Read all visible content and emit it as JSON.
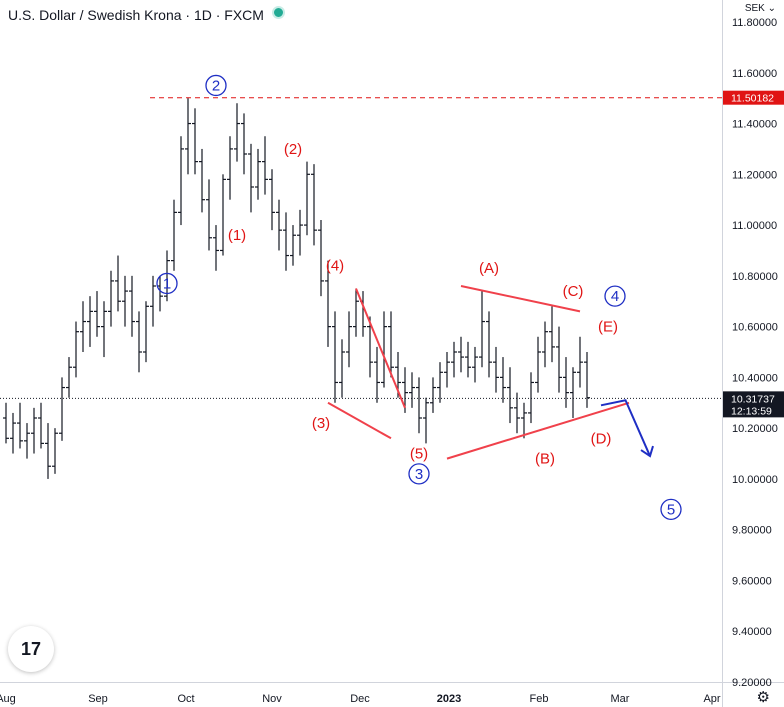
{
  "header": {
    "title": "U.S. Dollar / Swedish Krona · 1D · FXCM",
    "currency": "SEK ⌄"
  },
  "logo": {
    "text": "17"
  },
  "chart_data": {
    "type": "ohlc",
    "symbol": "USDSEK",
    "timeframe": "1D",
    "ylim": [
      9.2,
      11.8
    ],
    "y_ticks": [
      "11.80000",
      "11.60000",
      "11.40000",
      "11.20000",
      "11.00000",
      "10.80000",
      "10.60000",
      "10.40000",
      "10.20000",
      "10.00000",
      "9.80000",
      "9.60000",
      "9.40000",
      "9.20000"
    ],
    "x_ticks": [
      "Aug",
      "Sep",
      "Oct",
      "Nov",
      "Dec",
      "2023",
      "Feb",
      "Mar",
      "Apr"
    ],
    "last_price": "10.31737",
    "countdown": "12:13:59",
    "resistance_level": "11.50182",
    "bars": [
      [
        10.24,
        10.3,
        10.14,
        10.16
      ],
      [
        10.16,
        10.26,
        10.1,
        10.22
      ],
      [
        10.22,
        10.3,
        10.12,
        10.15
      ],
      [
        10.15,
        10.22,
        10.08,
        10.18
      ],
      [
        10.18,
        10.28,
        10.1,
        10.24
      ],
      [
        10.24,
        10.3,
        10.12,
        10.14
      ],
      [
        10.14,
        10.22,
        10.0,
        10.05
      ],
      [
        10.05,
        10.2,
        10.02,
        10.18
      ],
      [
        10.18,
        10.4,
        10.15,
        10.36
      ],
      [
        10.36,
        10.48,
        10.32,
        10.44
      ],
      [
        10.44,
        10.62,
        10.4,
        10.58
      ],
      [
        10.58,
        10.7,
        10.5,
        10.62
      ],
      [
        10.62,
        10.72,
        10.52,
        10.66
      ],
      [
        10.66,
        10.74,
        10.56,
        10.6
      ],
      [
        10.6,
        10.7,
        10.48,
        10.66
      ],
      [
        10.66,
        10.82,
        10.6,
        10.78
      ],
      [
        10.78,
        10.88,
        10.66,
        10.7
      ],
      [
        10.7,
        10.8,
        10.6,
        10.74
      ],
      [
        10.74,
        10.8,
        10.56,
        10.62
      ],
      [
        10.62,
        10.66,
        10.42,
        10.5
      ],
      [
        10.5,
        10.7,
        10.46,
        10.68
      ],
      [
        10.68,
        10.8,
        10.6,
        10.76
      ],
      [
        10.76,
        10.8,
        10.66,
        10.72
      ],
      [
        10.72,
        10.9,
        10.7,
        10.86
      ],
      [
        10.86,
        11.1,
        10.82,
        11.05
      ],
      [
        11.05,
        11.35,
        11.0,
        11.3
      ],
      [
        11.3,
        11.5,
        11.2,
        11.4
      ],
      [
        11.4,
        11.46,
        11.2,
        11.25
      ],
      [
        11.25,
        11.3,
        11.05,
        11.1
      ],
      [
        11.1,
        11.18,
        10.9,
        10.95
      ],
      [
        10.95,
        11.0,
        10.82,
        10.9
      ],
      [
        10.9,
        11.2,
        10.88,
        11.18
      ],
      [
        11.18,
        11.35,
        11.1,
        11.3
      ],
      [
        11.3,
        11.48,
        11.25,
        11.4
      ],
      [
        11.4,
        11.44,
        11.2,
        11.28
      ],
      [
        11.28,
        11.32,
        11.05,
        11.15
      ],
      [
        11.15,
        11.3,
        11.1,
        11.25
      ],
      [
        11.25,
        11.35,
        11.12,
        11.18
      ],
      [
        11.18,
        11.22,
        10.98,
        11.05
      ],
      [
        11.05,
        11.1,
        10.9,
        10.98
      ],
      [
        10.98,
        11.05,
        10.82,
        10.88
      ],
      [
        10.88,
        11.0,
        10.84,
        10.96
      ],
      [
        10.96,
        11.06,
        10.88,
        11.0
      ],
      [
        11.0,
        11.25,
        10.96,
        11.2
      ],
      [
        11.2,
        11.24,
        10.92,
        10.98
      ],
      [
        10.98,
        11.02,
        10.72,
        10.78
      ],
      [
        10.78,
        10.86,
        10.52,
        10.6
      ],
      [
        10.6,
        10.66,
        10.3,
        10.38
      ],
      [
        10.38,
        10.55,
        10.32,
        10.5
      ],
      [
        10.5,
        10.66,
        10.44,
        10.6
      ],
      [
        10.6,
        10.75,
        10.56,
        10.7
      ],
      [
        10.7,
        10.74,
        10.56,
        10.6
      ],
      [
        10.6,
        10.64,
        10.4,
        10.46
      ],
      [
        10.46,
        10.52,
        10.3,
        10.38
      ],
      [
        10.38,
        10.66,
        10.36,
        10.6
      ],
      [
        10.6,
        10.66,
        10.4,
        10.44
      ],
      [
        10.44,
        10.5,
        10.32,
        10.38
      ],
      [
        10.38,
        10.44,
        10.26,
        10.34
      ],
      [
        10.34,
        10.42,
        10.28,
        10.36
      ],
      [
        10.36,
        10.4,
        10.18,
        10.24
      ],
      [
        10.24,
        10.32,
        10.14,
        10.3
      ],
      [
        10.3,
        10.4,
        10.26,
        10.36
      ],
      [
        10.36,
        10.46,
        10.3,
        10.42
      ],
      [
        10.42,
        10.5,
        10.36,
        10.46
      ],
      [
        10.46,
        10.54,
        10.4,
        10.5
      ],
      [
        10.5,
        10.56,
        10.42,
        10.48
      ],
      [
        10.48,
        10.54,
        10.4,
        10.44
      ],
      [
        10.44,
        10.52,
        10.38,
        10.48
      ],
      [
        10.48,
        10.74,
        10.44,
        10.62
      ],
      [
        10.62,
        10.66,
        10.4,
        10.46
      ],
      [
        10.46,
        10.52,
        10.34,
        10.4
      ],
      [
        10.4,
        10.48,
        10.3,
        10.36
      ],
      [
        10.36,
        10.44,
        10.22,
        10.28
      ],
      [
        10.28,
        10.34,
        10.18,
        10.24
      ],
      [
        10.24,
        10.3,
        10.16,
        10.26
      ],
      [
        10.26,
        10.42,
        10.22,
        10.38
      ],
      [
        10.38,
        10.56,
        10.34,
        10.5
      ],
      [
        10.5,
        10.62,
        10.44,
        10.58
      ],
      [
        10.58,
        10.68,
        10.46,
        10.52
      ],
      [
        10.52,
        10.6,
        10.34,
        10.4
      ],
      [
        10.4,
        10.48,
        10.28,
        10.34
      ],
      [
        10.34,
        10.44,
        10.24,
        10.42
      ],
      [
        10.42,
        10.56,
        10.36,
        10.46
      ],
      [
        10.46,
        10.5,
        10.28,
        10.32
      ]
    ],
    "labels": [
      {
        "text": "2",
        "x_bar": 30,
        "price": 11.55,
        "color": "#1f2fc4",
        "circled": true
      },
      {
        "text": "1",
        "x_bar": 23,
        "price": 10.77,
        "color": "#1f2fc4",
        "circled": true
      },
      {
        "text": "3",
        "x_bar": 59,
        "price": 10.02,
        "color": "#1f2fc4",
        "circled": true
      },
      {
        "text": "4",
        "x_bar": 87,
        "price": 10.72,
        "color": "#1f2fc4",
        "circled": true
      },
      {
        "text": "5",
        "x_bar": 95,
        "price": 9.88,
        "color": "#1f2fc4",
        "circled": true
      },
      {
        "text": "(1)",
        "x_bar": 33,
        "price": 10.96,
        "color": "#e01414",
        "circled": false
      },
      {
        "text": "(2)",
        "x_bar": 41,
        "price": 11.3,
        "color": "#e01414",
        "circled": false
      },
      {
        "text": "(3)",
        "x_bar": 45,
        "price": 10.22,
        "color": "#e01414",
        "circled": false
      },
      {
        "text": "(4)",
        "x_bar": 47,
        "price": 10.84,
        "color": "#e01414",
        "circled": false
      },
      {
        "text": "(5)",
        "x_bar": 59,
        "price": 10.1,
        "color": "#e01414",
        "circled": false
      },
      {
        "text": "(A)",
        "x_bar": 69,
        "price": 10.83,
        "color": "#e01414",
        "circled": false
      },
      {
        "text": "(B)",
        "x_bar": 77,
        "price": 10.08,
        "color": "#e01414",
        "circled": false
      },
      {
        "text": "(C)",
        "x_bar": 81,
        "price": 10.74,
        "color": "#e01414",
        "circled": false
      },
      {
        "text": "(D)",
        "x_bar": 85,
        "price": 10.16,
        "color": "#e01414",
        "circled": false
      },
      {
        "text": "(E)",
        "x_bar": 86,
        "price": 10.6,
        "color": "#e01414",
        "circled": false
      }
    ]
  }
}
